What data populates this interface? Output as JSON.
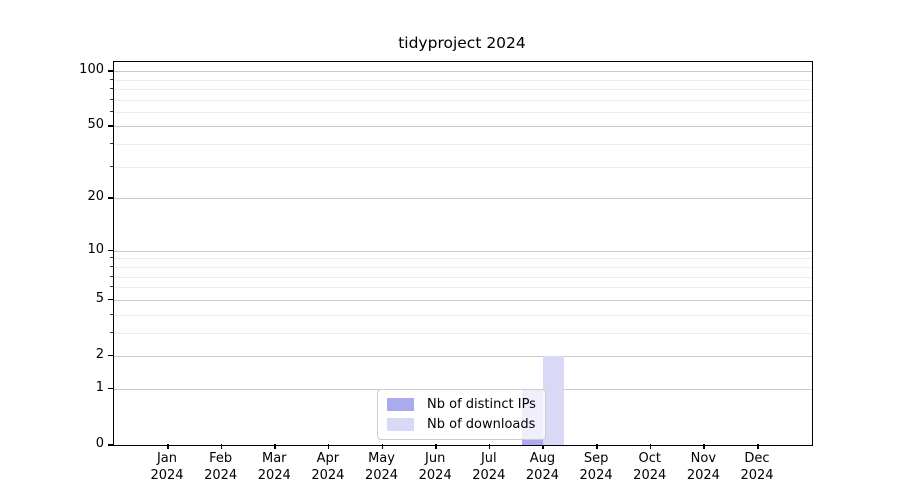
{
  "chart_data": {
    "type": "bar",
    "title": "tidyproject 2024",
    "categories": [
      {
        "month": "Jan",
        "year": "2024"
      },
      {
        "month": "Feb",
        "year": "2024"
      },
      {
        "month": "Mar",
        "year": "2024"
      },
      {
        "month": "Apr",
        "year": "2024"
      },
      {
        "month": "May",
        "year": "2024"
      },
      {
        "month": "Jun",
        "year": "2024"
      },
      {
        "month": "Jul",
        "year": "2024"
      },
      {
        "month": "Aug",
        "year": "2024"
      },
      {
        "month": "Sep",
        "year": "2024"
      },
      {
        "month": "Oct",
        "year": "2024"
      },
      {
        "month": "Nov",
        "year": "2024"
      },
      {
        "month": "Dec",
        "year": "2024"
      }
    ],
    "series": [
      {
        "name": "Nb of distinct IPs",
        "color": "#aaaaee",
        "values": [
          0,
          0,
          0,
          0,
          0,
          0,
          0,
          1,
          0,
          0,
          0,
          0
        ]
      },
      {
        "name": "Nb of downloads",
        "color": "#d9d9f7",
        "values": [
          0,
          0,
          0,
          0,
          0,
          0,
          0,
          2,
          0,
          0,
          0,
          0
        ]
      }
    ],
    "yscale": "log1p",
    "ylim": [
      0,
      112
    ],
    "yticks_major": [
      0,
      1,
      2,
      5,
      10,
      20,
      50,
      100
    ],
    "yticks_minor": [
      3,
      4,
      6,
      7,
      8,
      9,
      30,
      40,
      60,
      70,
      80,
      90
    ],
    "grid": "horizontal",
    "legend_position": "lower center",
    "colors": {
      "axis": "#000000",
      "grid_major": "#c9c9c9",
      "grid_minor": "#ededed",
      "background": "#ffffff"
    }
  }
}
